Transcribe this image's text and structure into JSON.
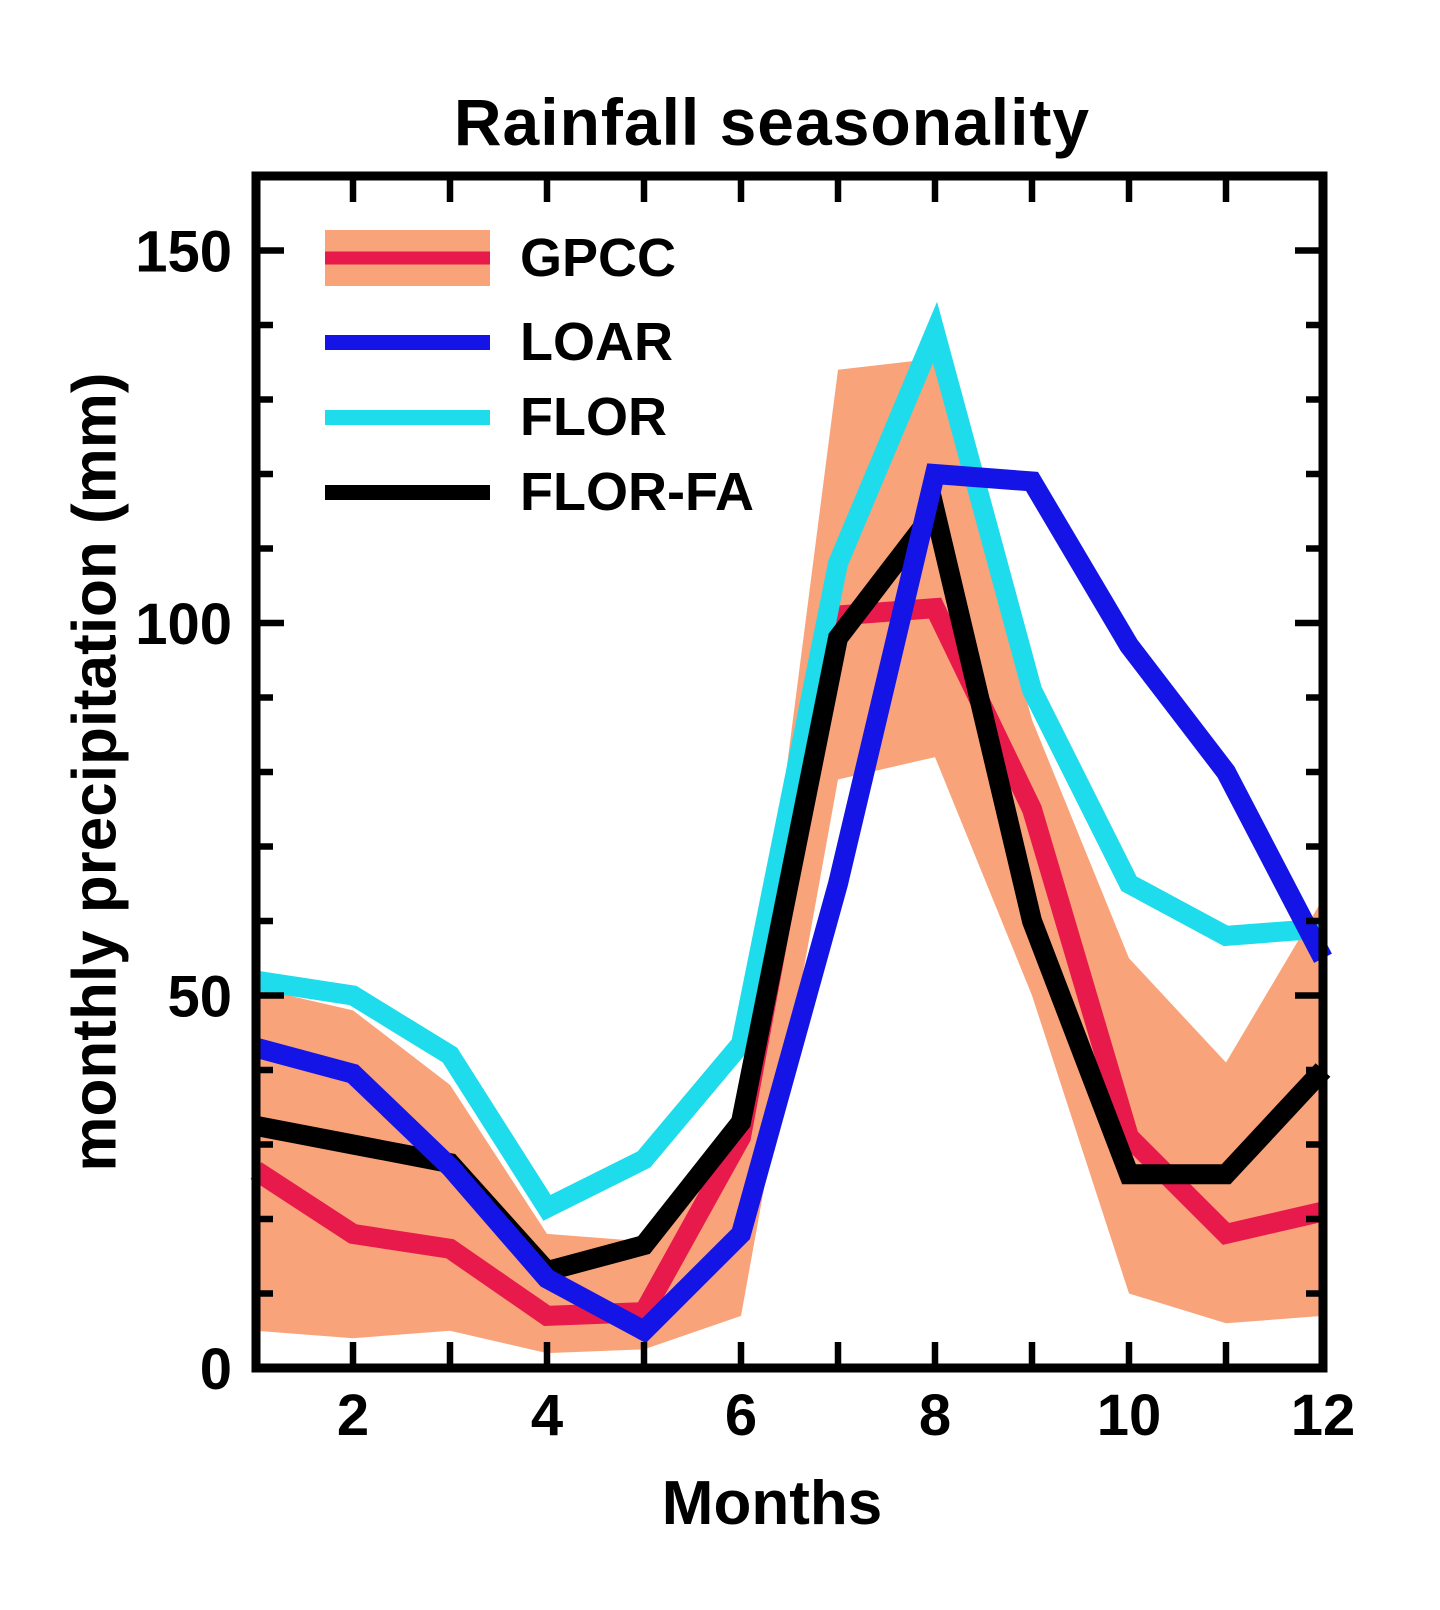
{
  "chart_data": {
    "type": "line",
    "title": "Rainfall seasonality",
    "xlabel": "Months",
    "ylabel": "monthly precipitation (mm)",
    "x": [
      1,
      2,
      3,
      4,
      5,
      6,
      7,
      8,
      9,
      10,
      11,
      12
    ],
    "xlim": [
      1,
      12
    ],
    "ylim": [
      0,
      160
    ],
    "x_labeled_ticks": [
      2,
      4,
      6,
      8,
      10,
      12
    ],
    "y_major_ticks": [
      0,
      50,
      100,
      150
    ],
    "y_minor_step": 10,
    "grid": false,
    "legend_position": "top-left-inside",
    "band": {
      "label": "GPCC",
      "color": "#F9A37A",
      "top": [
        51,
        48,
        38,
        18,
        17,
        33,
        134,
        135.5,
        87,
        55,
        41,
        63
      ],
      "bottom": [
        5,
        4,
        5,
        2,
        2.5,
        7,
        79,
        82,
        50,
        10,
        6,
        7
      ]
    },
    "series": [
      {
        "name": "GPCC",
        "color": "#E81A4B",
        "values": [
          26.5,
          18,
          16,
          7,
          7.5,
          31,
          101,
          102,
          75,
          31,
          18,
          21
        ]
      },
      {
        "name": "LOAR",
        "color": "#1414E6",
        "values": [
          43,
          39.5,
          27,
          12,
          5,
          18,
          65,
          120,
          119,
          97,
          80,
          55
        ]
      },
      {
        "name": "FLOR",
        "color": "#1EDCEB",
        "values": [
          52,
          50,
          42,
          21.5,
          28,
          43.5,
          108,
          139,
          91,
          65,
          58,
          59
        ]
      },
      {
        "name": "FLOR-FA",
        "color": "#000000",
        "values": [
          32.5,
          30,
          27.5,
          13,
          16.5,
          33,
          98,
          115,
          60,
          26,
          26,
          40
        ]
      }
    ],
    "draw_order": [
      "band",
      "GPCC",
      "FLOR",
      "FLOR-FA",
      "LOAR"
    ],
    "legend_entries": [
      {
        "label": "GPCC",
        "swatch": "band-with-line",
        "series": "GPCC"
      },
      {
        "label": "LOAR",
        "swatch": "line",
        "series": "LOAR"
      },
      {
        "label": "FLOR",
        "swatch": "line",
        "series": "FLOR"
      },
      {
        "label": "FLOR-FA",
        "swatch": "line",
        "series": "FLOR-FA"
      }
    ]
  }
}
